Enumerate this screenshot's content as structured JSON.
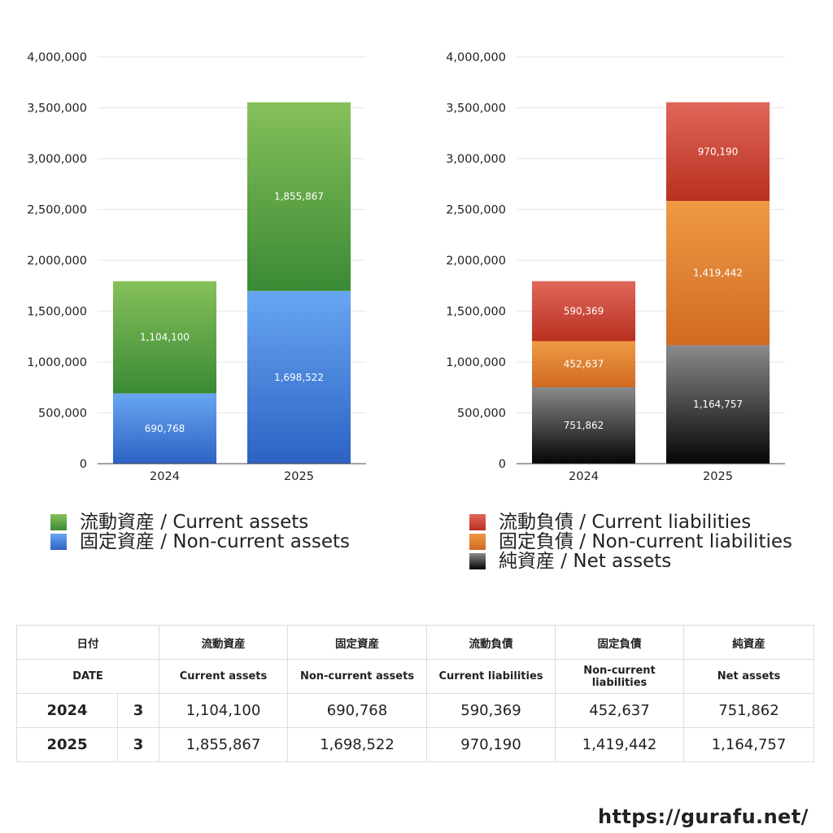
{
  "chart_data": [
    {
      "type": "bar",
      "stacked": true,
      "categories": [
        "2024",
        "2025"
      ],
      "series": [
        {
          "name": "固定資産 / Non-current assets",
          "values": [
            690768,
            1698522
          ],
          "color_top": "#68a6f2",
          "color_bottom": "#2d62c3"
        },
        {
          "name": "流動資産 / Current assets",
          "values": [
            1104100,
            1855867
          ],
          "color_top": "#86c05a",
          "color_bottom": "#3a8a35"
        }
      ],
      "ylim": [
        0,
        4000000
      ],
      "yticks": [
        "0",
        "500,000",
        "1,000,000",
        "1,500,000",
        "2,000,000",
        "2,500,000",
        "3,000,000",
        "3,500,000",
        "4,000,000"
      ],
      "grid": true,
      "legend": "bottom"
    },
    {
      "type": "bar",
      "stacked": true,
      "categories": [
        "2024",
        "2025"
      ],
      "series": [
        {
          "name": "純資産 / Net assets",
          "values": [
            751862,
            1164757
          ],
          "color_top": "#8a8a8a",
          "color_bottom": "#050505"
        },
        {
          "name": "固定負債 / Non-current liabilities",
          "values": [
            452637,
            1419442
          ],
          "color_top": "#ef9a45",
          "color_bottom": "#d06a22"
        },
        {
          "name": "流動負債 / Current liabilities",
          "values": [
            590369,
            970190
          ],
          "color_top": "#e0675a",
          "color_bottom": "#b83020"
        }
      ],
      "ylim": [
        0,
        4000000
      ],
      "yticks": [
        "0",
        "500,000",
        "1,000,000",
        "1,500,000",
        "2,000,000",
        "2,500,000",
        "3,000,000",
        "3,500,000",
        "4,000,000"
      ],
      "grid": true,
      "legend": "bottom"
    }
  ],
  "legend_left": [
    {
      "label": "流動資産 / Current assets",
      "color": "#5aa545"
    },
    {
      "label": "固定資産 / Non-current assets",
      "color": "#3d7ddc"
    }
  ],
  "legend_right": [
    {
      "label": "流動負債 / Current liabilities",
      "color": "#d24b3c"
    },
    {
      "label": "固定負債 / Non-current liabilities",
      "color": "#e5853a"
    },
    {
      "label": "純資産 / Net assets",
      "color": "#333333"
    }
  ],
  "table": {
    "header_jp": [
      "日付",
      "流動資産",
      "固定資産",
      "流動負債",
      "固定負債",
      "純資産"
    ],
    "header_en": [
      "DATE",
      "Current assets",
      "Non-current assets",
      "Current liabilities",
      "Non-current liabilities",
      "Net assets"
    ],
    "rows": [
      {
        "year": "2024",
        "month": "3",
        "values": [
          "1,104,100",
          "690,768",
          "590,369",
          "452,637",
          "751,862"
        ]
      },
      {
        "year": "2025",
        "month": "3",
        "values": [
          "1,855,867",
          "1,698,522",
          "970,190",
          "1,419,442",
          "1,164,757"
        ]
      }
    ]
  },
  "footer": "https://gurafu.net/"
}
